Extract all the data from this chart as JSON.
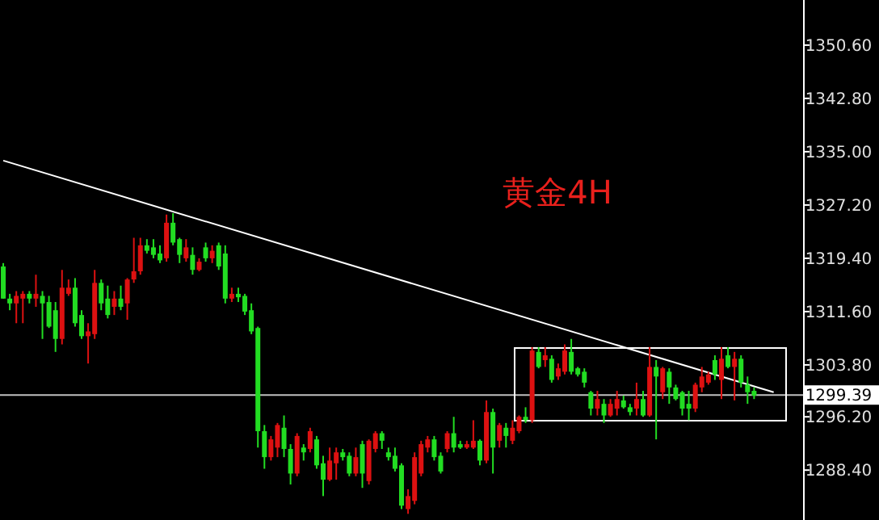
{
  "chart_data": {
    "type": "candlestick",
    "title": "黄金4H",
    "categories": [
      null,
      null,
      null,
      null,
      null,
      null,
      null,
      null,
      null,
      null,
      null,
      null,
      null,
      null,
      null,
      null,
      null,
      null,
      null,
      null,
      null,
      null,
      null,
      null,
      null,
      null,
      null,
      null,
      null,
      null,
      null,
      null,
      null,
      null,
      null,
      null,
      null,
      null,
      null,
      null,
      null,
      null,
      null,
      null,
      null,
      null,
      null,
      null,
      null,
      null,
      null,
      null,
      null,
      null,
      null,
      null,
      null,
      null,
      null,
      null,
      null,
      null,
      null,
      null,
      null,
      null,
      null,
      null,
      null,
      null,
      null,
      null,
      null,
      null,
      null,
      null,
      null,
      null,
      null,
      null,
      null,
      null,
      null,
      null,
      null,
      null,
      null,
      null,
      null,
      null,
      null,
      null,
      null,
      null,
      null,
      null,
      null,
      null,
      null,
      null,
      null,
      null,
      null,
      null,
      null,
      null,
      null,
      null,
      null,
      null,
      null,
      null,
      null,
      null,
      null,
      null,
      null,
      null,
      null,
      null,
      null,
      null,
      null
    ],
    "ohlc": [
      [
        1318.2,
        1318.7,
        1313.5,
        1313.5
      ],
      [
        1313.5,
        1314.2,
        1311.8,
        1312.8
      ],
      [
        1312.8,
        1314.6,
        1309.9,
        1313.9
      ],
      [
        1313.5,
        1314.6,
        1309.9,
        1314.2
      ],
      [
        1314.2,
        1314.6,
        1312.8,
        1313.5
      ],
      [
        1313.5,
        1317.0,
        1312.3,
        1314.2
      ],
      [
        1313.9,
        1314.6,
        1307.6,
        1312.8
      ],
      [
        1313.0,
        1313.9,
        1309.2,
        1309.4
      ],
      [
        1311.8,
        1313.0,
        1305.7,
        1307.6
      ],
      [
        1307.6,
        1317.7,
        1306.8,
        1315.1
      ],
      [
        1314.2,
        1316.3,
        1313.9,
        1315.1
      ],
      [
        1315.1,
        1316.5,
        1309.4,
        1309.9
      ],
      [
        1311.1,
        1311.8,
        1307.6,
        1308.0
      ],
      [
        1308.0,
        1309.9,
        1304.0,
        1308.7
      ],
      [
        1308.3,
        1317.7,
        1307.6,
        1315.8
      ],
      [
        1315.8,
        1316.3,
        1311.8,
        1312.8
      ],
      [
        1313.5,
        1315.4,
        1310.6,
        1311.1
      ],
      [
        1312.3,
        1314.6,
        1311.1,
        1313.5
      ],
      [
        1313.5,
        1315.4,
        1311.8,
        1312.3
      ],
      [
        1312.8,
        1316.5,
        1310.4,
        1316.3
      ],
      [
        1316.3,
        1322.4,
        1315.8,
        1317.5
      ],
      [
        1317.5,
        1322.4,
        1317.0,
        1321.3
      ],
      [
        1321.3,
        1322.2,
        1320.1,
        1320.5
      ],
      [
        1321.0,
        1322.2,
        1319.4,
        1319.9
      ],
      [
        1320.1,
        1321.3,
        1318.7,
        1319.1
      ],
      [
        1319.4,
        1325.8,
        1318.9,
        1324.6
      ],
      [
        1324.6,
        1326.0,
        1321.3,
        1321.7
      ],
      [
        1322.2,
        1322.4,
        1318.7,
        1319.9
      ],
      [
        1319.4,
        1322.2,
        1318.9,
        1321.0
      ],
      [
        1319.9,
        1321.0,
        1317.0,
        1317.7
      ],
      [
        1317.7,
        1319.4,
        1317.5,
        1318.9
      ],
      [
        1321.0,
        1321.7,
        1318.9,
        1319.4
      ],
      [
        1319.4,
        1321.3,
        1318.7,
        1320.5
      ],
      [
        1321.3,
        1321.7,
        1317.7,
        1318.2
      ],
      [
        1320.1,
        1321.3,
        1312.8,
        1313.5
      ],
      [
        1313.5,
        1315.1,
        1313.0,
        1314.2
      ],
      [
        1314.2,
        1315.1,
        1313.0,
        1313.7
      ],
      [
        1313.9,
        1314.2,
        1311.1,
        1311.6
      ],
      [
        1311.8,
        1312.8,
        1308.3,
        1308.7
      ],
      [
        1309.2,
        1309.4,
        1291.7,
        1294.1
      ],
      [
        1294.1,
        1295.0,
        1288.6,
        1290.3
      ],
      [
        1290.3,
        1293.4,
        1289.8,
        1292.9
      ],
      [
        1291.7,
        1295.3,
        1290.3,
        1295.0
      ],
      [
        1294.6,
        1296.4,
        1290.3,
        1291.5
      ],
      [
        1291.5,
        1292.2,
        1286.3,
        1287.9
      ],
      [
        1287.9,
        1293.8,
        1287.5,
        1293.4
      ],
      [
        1291.7,
        1292.2,
        1289.8,
        1291.0
      ],
      [
        1291.5,
        1294.6,
        1291.0,
        1294.1
      ],
      [
        1292.9,
        1293.4,
        1288.6,
        1289.1
      ],
      [
        1289.4,
        1290.5,
        1284.6,
        1287.0
      ],
      [
        1287.0,
        1291.7,
        1286.8,
        1289.8
      ],
      [
        1289.4,
        1291.7,
        1287.0,
        1291.0
      ],
      [
        1291.0,
        1291.5,
        1289.8,
        1290.3
      ],
      [
        1290.5,
        1291.0,
        1287.5,
        1287.9
      ],
      [
        1287.9,
        1291.7,
        1287.5,
        1290.3
      ],
      [
        1292.2,
        1292.7,
        1285.8,
        1287.9
      ],
      [
        1286.8,
        1292.9,
        1286.3,
        1292.7
      ],
      [
        1291.5,
        1294.1,
        1291.0,
        1293.8
      ],
      [
        1293.8,
        1294.1,
        1291.5,
        1292.7
      ],
      [
        1291.0,
        1291.7,
        1289.8,
        1290.3
      ],
      [
        1290.5,
        1291.7,
        1288.2,
        1288.6
      ],
      [
        1289.1,
        1289.4,
        1282.7,
        1283.2
      ],
      [
        1282.7,
        1285.6,
        1282.0,
        1284.6
      ],
      [
        1283.9,
        1291.0,
        1283.4,
        1290.3
      ],
      [
        1287.9,
        1292.7,
        1287.5,
        1292.2
      ],
      [
        1291.7,
        1293.4,
        1291.0,
        1292.9
      ],
      [
        1292.9,
        1293.4,
        1289.8,
        1290.3
      ],
      [
        1290.5,
        1291.0,
        1287.9,
        1288.2
      ],
      [
        1291.5,
        1294.1,
        1291.0,
        1293.8
      ],
      [
        1293.8,
        1296.2,
        1291.0,
        1291.7
      ],
      [
        1292.2,
        1292.7,
        1291.5,
        1291.7
      ],
      [
        1291.7,
        1292.7,
        1291.5,
        1292.2
      ],
      [
        1291.7,
        1295.7,
        1291.5,
        1292.7
      ],
      [
        1292.7,
        1292.9,
        1289.1,
        1289.8
      ],
      [
        1289.8,
        1298.6,
        1289.4,
        1296.9
      ],
      [
        1296.9,
        1297.4,
        1287.9,
        1291.7
      ],
      [
        1292.7,
        1295.3,
        1291.7,
        1295.0
      ],
      [
        1294.6,
        1295.3,
        1291.7,
        1293.4
      ],
      [
        1292.7,
        1295.7,
        1292.2,
        1294.6
      ],
      [
        1294.1,
        1296.4,
        1293.8,
        1296.2
      ],
      [
        1296.2,
        1297.6,
        1295.3,
        1295.7
      ],
      [
        1295.7,
        1306.4,
        1295.3,
        1305.9
      ],
      [
        1305.7,
        1306.4,
        1303.3,
        1303.5
      ],
      [
        1304.5,
        1306.4,
        1303.5,
        1305.2
      ],
      [
        1304.7,
        1305.2,
        1301.2,
        1301.6
      ],
      [
        1302.1,
        1304.0,
        1301.6,
        1303.3
      ],
      [
        1302.8,
        1306.8,
        1302.4,
        1305.9
      ],
      [
        1305.7,
        1307.6,
        1302.4,
        1302.8
      ],
      [
        1303.3,
        1303.5,
        1302.1,
        1302.4
      ],
      [
        1302.8,
        1303.3,
        1300.5,
        1301.2
      ],
      [
        1299.8,
        1300.0,
        1296.4,
        1297.4
      ],
      [
        1297.4,
        1300.0,
        1296.4,
        1298.8
      ],
      [
        1298.1,
        1298.8,
        1295.3,
        1296.4
      ],
      [
        1296.4,
        1298.8,
        1296.2,
        1298.1
      ],
      [
        1297.4,
        1300.0,
        1296.4,
        1298.8
      ],
      [
        1298.6,
        1299.3,
        1297.4,
        1297.6
      ],
      [
        1297.6,
        1298.1,
        1296.4,
        1296.9
      ],
      [
        1297.4,
        1301.2,
        1296.4,
        1298.8
      ],
      [
        1298.8,
        1300.0,
        1296.2,
        1296.4
      ],
      [
        1296.4,
        1306.4,
        1296.2,
        1303.5
      ],
      [
        1303.5,
        1304.5,
        1292.9,
        1302.1
      ],
      [
        1299.8,
        1303.5,
        1298.8,
        1303.3
      ],
      [
        1302.8,
        1303.3,
        1298.1,
        1300.5
      ],
      [
        1300.5,
        1300.9,
        1298.6,
        1298.8
      ],
      [
        1299.8,
        1300.0,
        1296.4,
        1297.4
      ],
      [
        1298.1,
        1300.0,
        1295.7,
        1297.4
      ],
      [
        1297.4,
        1301.2,
        1296.9,
        1300.9
      ],
      [
        1300.5,
        1303.5,
        1299.8,
        1302.1
      ],
      [
        1301.2,
        1302.8,
        1300.9,
        1302.4
      ],
      [
        1304.5,
        1305.2,
        1301.6,
        1302.4
      ],
      [
        1301.6,
        1306.4,
        1298.8,
        1304.7
      ],
      [
        1305.2,
        1306.4,
        1303.3,
        1303.5
      ],
      [
        1303.5,
        1305.7,
        1298.6,
        1304.7
      ],
      [
        1304.7,
        1305.2,
        1300.5,
        1301.2
      ],
      [
        1300.9,
        1302.1,
        1298.1,
        1299.8
      ],
      [
        1300.0,
        1300.5,
        1298.8,
        1299.3
      ],
      null,
      null,
      null,
      null,
      null,
      null,
      null
    ],
    "colors": [
      "#22dd22",
      "#22dd22",
      "#dd1111",
      "#dd1111",
      "#22dd22",
      "#dd1111",
      "#22dd22",
      "#22dd22",
      "#22dd22",
      "#dd1111",
      "#dd1111",
      "#22dd22",
      "#22dd22",
      "#dd1111",
      "#dd1111",
      "#22dd22",
      "#22dd22",
      "#dd1111",
      "#22dd22",
      "#dd1111",
      "#dd1111",
      "#dd1111",
      "#22dd22",
      "#22dd22",
      "#22dd22",
      "#dd1111",
      "#22dd22",
      "#22dd22",
      "#dd1111",
      "#22dd22",
      "#dd1111",
      "#22dd22",
      "#dd1111",
      "#22dd22",
      "#22dd22",
      "#dd1111",
      "#22dd22",
      "#22dd22",
      "#22dd22",
      "#22dd22",
      "#22dd22",
      "#dd1111",
      "#dd1111",
      "#22dd22",
      "#22dd22",
      "#dd1111",
      "#22dd22",
      "#dd1111",
      "#22dd22",
      "#22dd22",
      "#dd1111",
      "#dd1111",
      "#22dd22",
      "#22dd22",
      "#dd1111",
      "#22dd22",
      "#dd1111",
      "#dd1111",
      "#22dd22",
      "#22dd22",
      "#22dd22",
      "#22dd22",
      "#dd1111",
      "#dd1111",
      "#dd1111",
      "#dd1111",
      "#22dd22",
      "#22dd22",
      "#dd1111",
      "#22dd22",
      "#22dd22",
      "#dd1111",
      "#dd1111",
      "#22dd22",
      "#dd1111",
      "#22dd22",
      "#dd1111",
      "#22dd22",
      "#dd1111",
      "#dd1111",
      "#22dd22",
      "#dd1111",
      "#22dd22",
      "#dd1111",
      "#22dd22",
      "#dd1111",
      "#dd1111",
      "#22dd22",
      "#22dd22",
      "#22dd22",
      "#22dd22",
      "#dd1111",
      "#22dd22",
      "#dd1111",
      "#dd1111",
      "#22dd22",
      "#22dd22",
      "#dd1111",
      "#22dd22",
      "#dd1111",
      "#22dd22",
      "#dd1111",
      "#22dd22",
      "#22dd22",
      "#22dd22",
      "#22dd22",
      "#dd1111",
      "#dd1111",
      "#dd1111",
      "#22dd22",
      "#dd1111",
      "#22dd22",
      "#dd1111",
      "#22dd22",
      "#22dd22",
      "#22dd22",
      null,
      null,
      null,
      null,
      null,
      null,
      null
    ],
    "series": [
      {
        "type": "line",
        "color": "#ffffff",
        "values": [
          1333.7,
          null,
          null,
          null,
          null,
          null,
          null,
          null,
          null,
          null,
          null,
          null,
          null,
          null,
          null,
          null,
          null,
          null,
          null,
          null,
          null,
          null,
          null,
          null,
          null,
          null,
          null,
          null,
          null,
          null,
          null,
          null,
          null,
          null,
          null,
          null,
          null,
          null,
          null,
          null,
          null,
          null,
          null,
          null,
          null,
          null,
          null,
          null,
          null,
          null,
          null,
          null,
          null,
          null,
          null,
          null,
          null,
          null,
          null,
          null,
          null,
          null,
          null,
          null,
          null,
          null,
          null,
          null,
          null,
          null,
          null,
          null,
          null,
          null,
          null,
          null,
          null,
          null,
          null,
          null,
          null,
          null,
          null,
          null,
          null,
          null,
          null,
          null,
          null,
          null,
          null,
          null,
          null,
          null,
          null,
          null,
          null,
          null,
          null,
          null,
          null,
          null,
          null,
          null,
          null,
          null,
          null,
          null,
          null,
          null,
          null,
          null,
          null,
          null,
          null,
          null,
          null,
          null,
          1299.8,
          null,
          null,
          null,
          null
        ]
      }
    ],
    "ylim": [
      1281.1,
      1357.2
    ],
    "yticks": [
      {
        "value": 1350.6,
        "label": "1350.60"
      },
      {
        "value": 1342.8,
        "label": "1342.80"
      },
      {
        "value": 1335.0,
        "label": "1335.00"
      },
      {
        "value": 1327.2,
        "label": "1327.20"
      },
      {
        "value": 1319.4,
        "label": "1319.40"
      },
      {
        "value": 1311.6,
        "label": "1311.60"
      },
      {
        "value": 1303.8,
        "label": "1303.80"
      },
      {
        "value": 1296.2,
        "label": "1296.20"
      },
      {
        "value": 1288.4,
        "label": "1288.40"
      }
    ],
    "ref_lines": [
      {
        "axis": "y",
        "value": 1299.39,
        "label": "1299.39",
        "color": "#c0c0c0"
      }
    ]
  }
}
